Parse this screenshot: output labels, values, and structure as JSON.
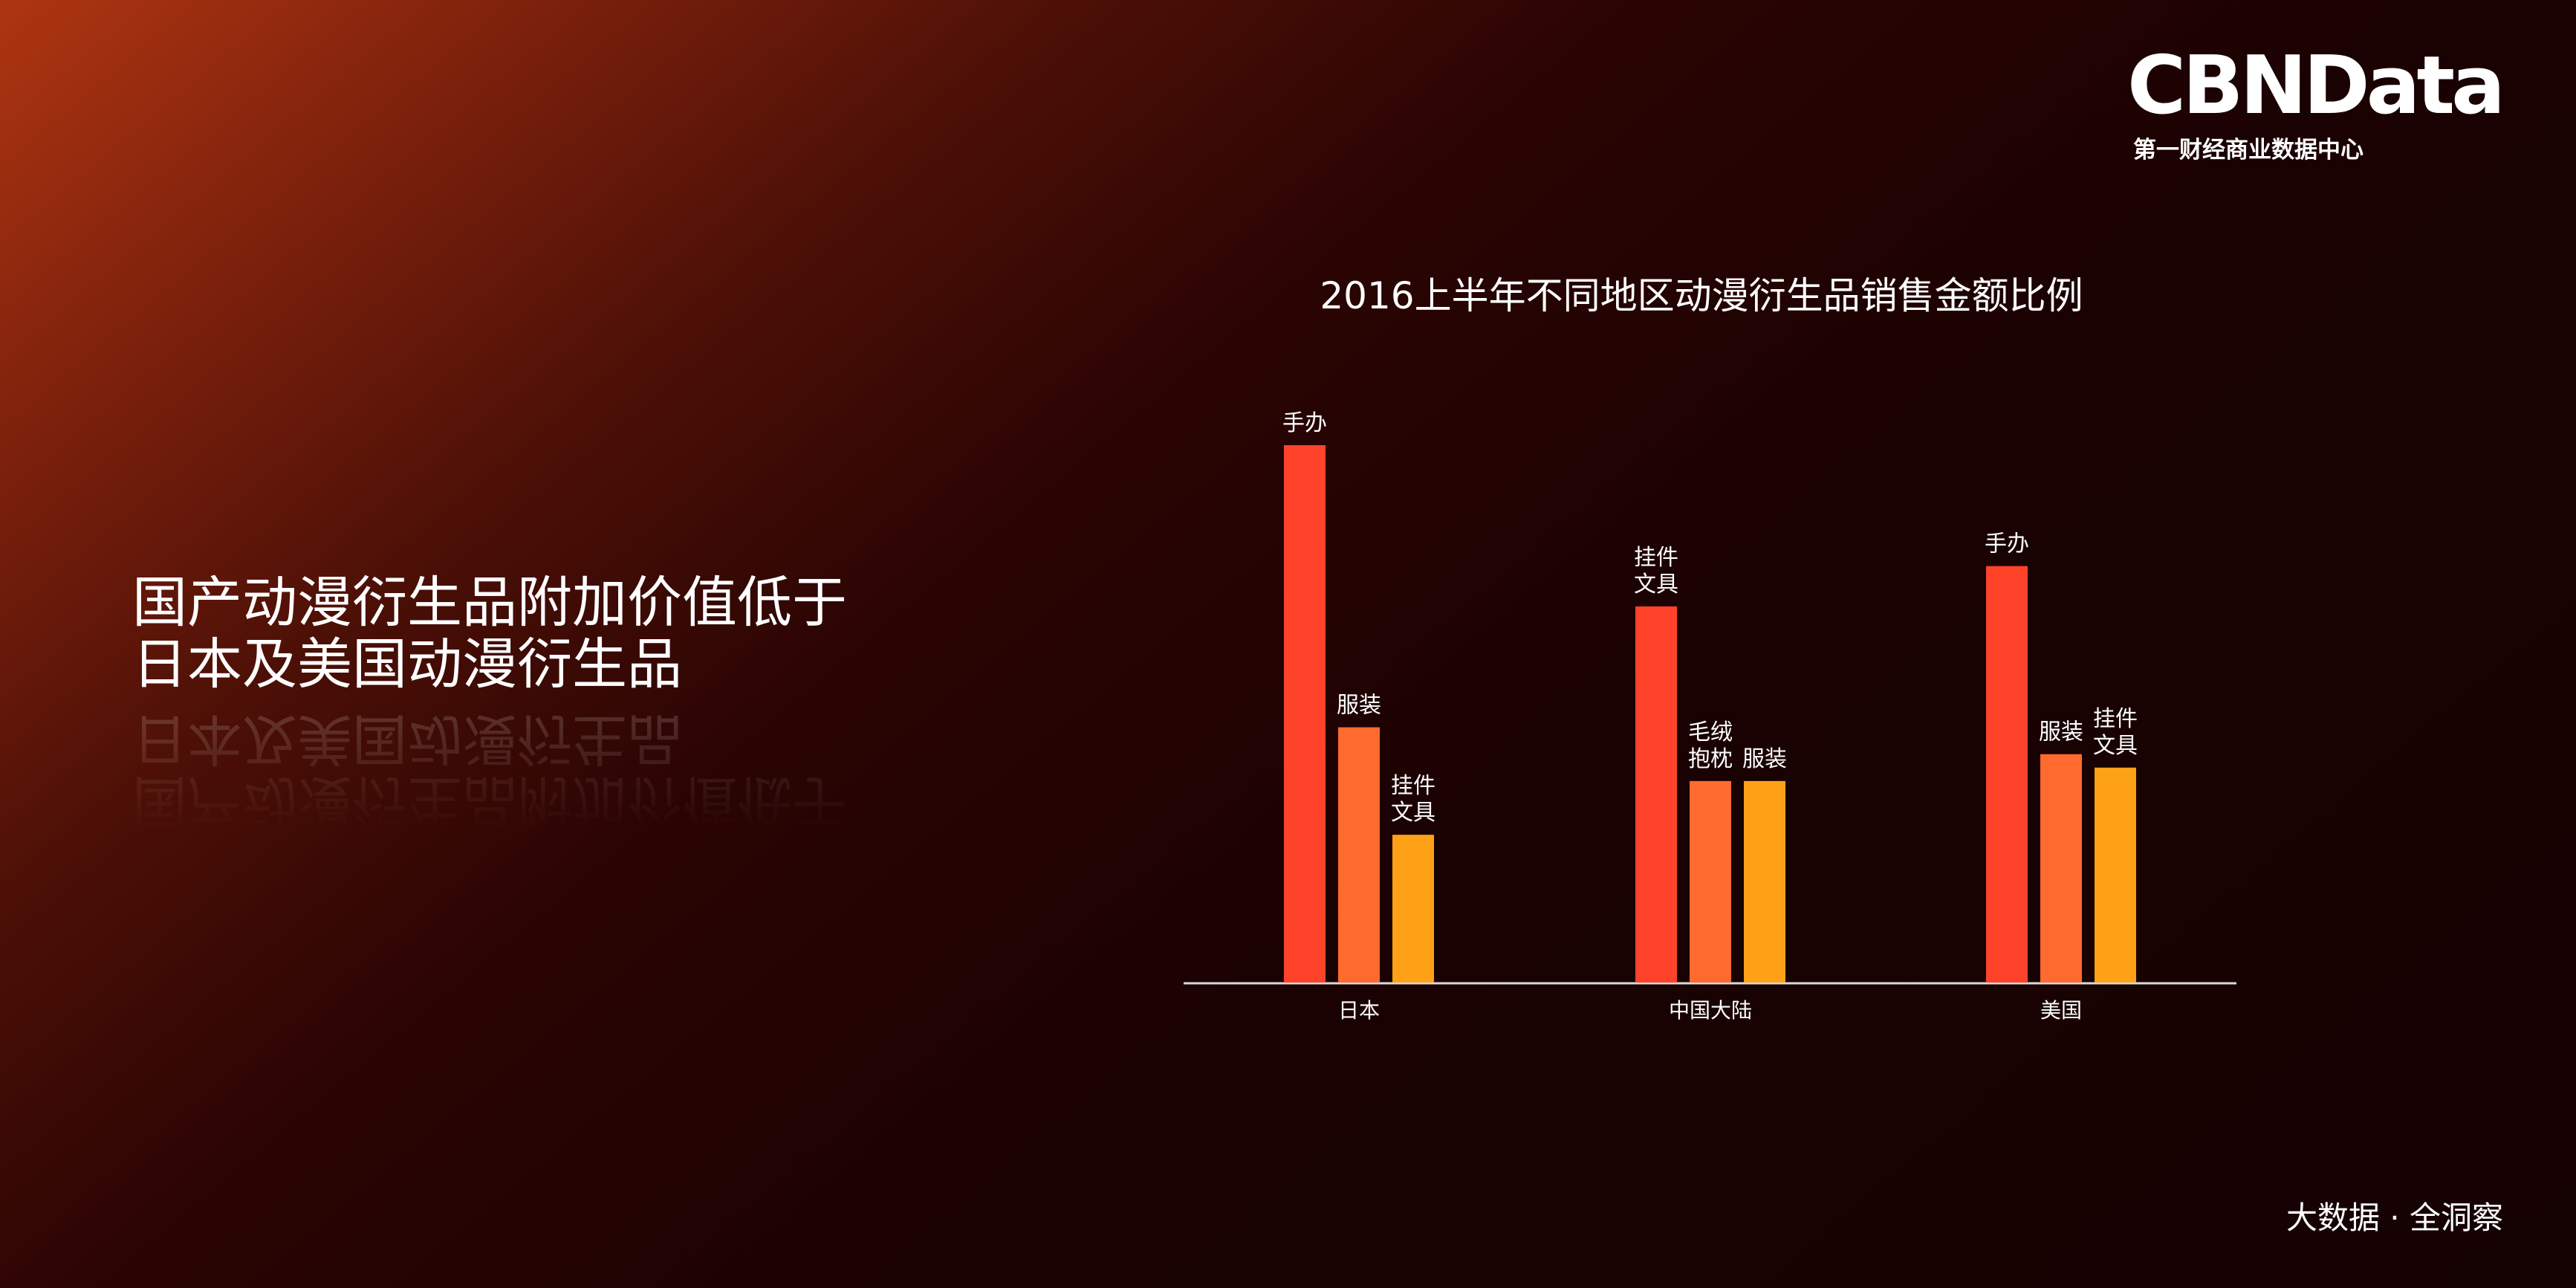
{
  "logo": {
    "wordmark": "CBNData",
    "subtitle": "第一财经商业数据中心"
  },
  "headline": {
    "line1": "国产动漫衍生品附加价值低于",
    "line2": "日本及美国动漫衍生品"
  },
  "tagline": "大数据 · 全洞察",
  "colors": {
    "series1": "#ff432a",
    "series2": "#ff6a2e",
    "series3": "#ffa116",
    "axis": "#d9d9d9",
    "text": "#ffffff"
  },
  "chart_data": {
    "type": "bar",
    "title": "2016上半年不同地区动漫衍生品销售金额比例",
    "xlabel": "",
    "ylabel": "",
    "ylim": [
      0,
      100
    ],
    "grid": false,
    "legend": "none",
    "categories": [
      "日本",
      "中国大陆",
      "美国"
    ],
    "groups": [
      {
        "category": "日本",
        "bars": [
          {
            "label": "手办",
            "value": 100
          },
          {
            "label": "服装",
            "value": 47.5
          },
          {
            "label": "挂件\n文具",
            "value": 27.5
          }
        ]
      },
      {
        "category": "中国大陆",
        "bars": [
          {
            "label": "挂件\n文具",
            "value": 70
          },
          {
            "label": "毛绒\n抱枕",
            "value": 37.5
          },
          {
            "label": "服装",
            "value": 37.5
          }
        ]
      },
      {
        "category": "美国",
        "bars": [
          {
            "label": "手办",
            "value": 77.5
          },
          {
            "label": "服装",
            "value": 42.5
          },
          {
            "label": "挂件\n文具",
            "value": 40
          }
        ]
      }
    ]
  }
}
